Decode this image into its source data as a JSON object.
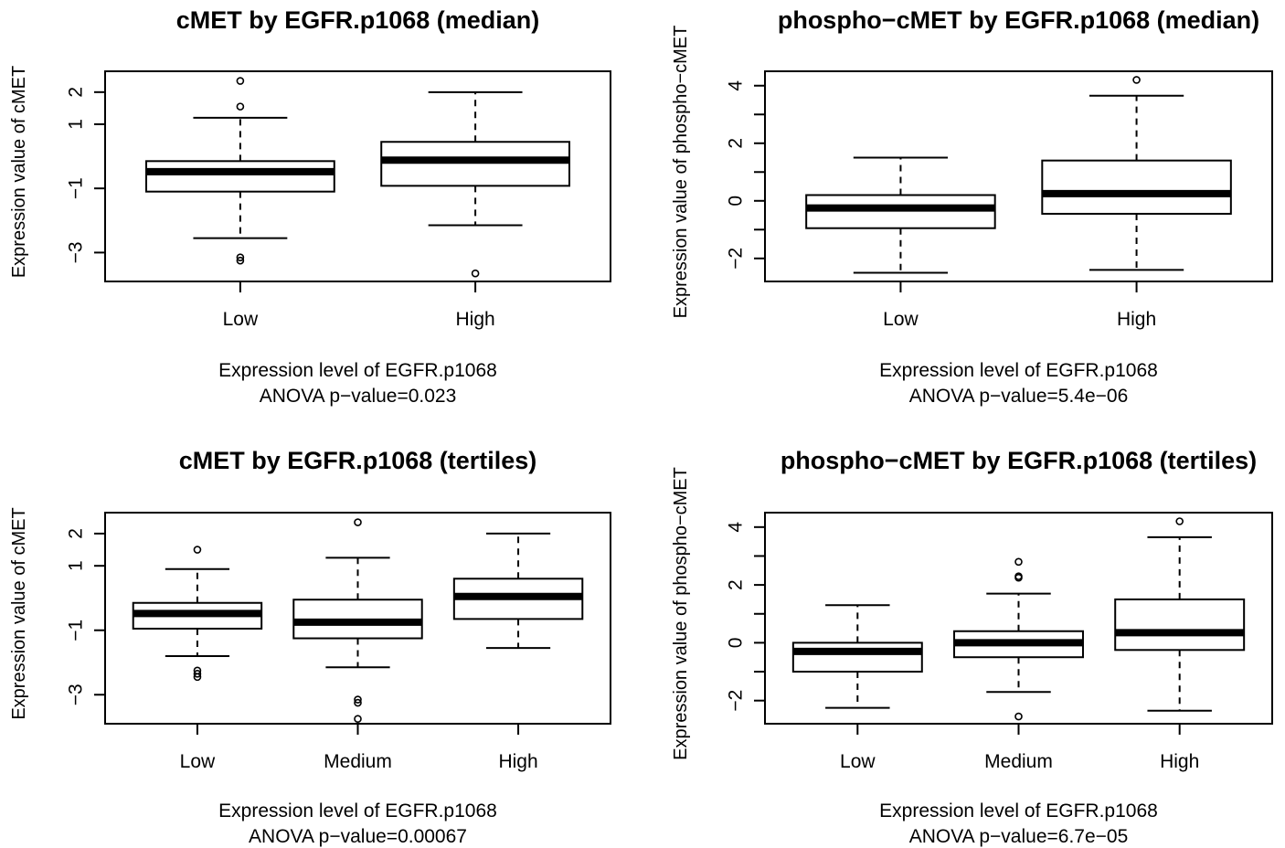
{
  "chart_data": [
    {
      "type": "boxplot",
      "title": "cMET by EGFR.p1068 (median)",
      "xlabel": "Expression level of EGFR.p1068",
      "ylabel": "Expression value of cMET",
      "annotation": "ANOVA p−value=0.023",
      "ylim": [
        -3.9,
        2.65
      ],
      "yticks": [
        -3,
        -1,
        1,
        2
      ],
      "ytick_labels": [
        "−3",
        "−1",
        "1",
        "2"
      ],
      "ygrid": false,
      "categories": [
        "Low",
        "High"
      ],
      "boxes": [
        {
          "category": "Low",
          "whisker_low": -2.55,
          "q1": -1.1,
          "median": -0.48,
          "q3": -0.15,
          "whisker_high": 1.2,
          "outliers": [
            2.35,
            1.55,
            -3.15,
            -3.25
          ]
        },
        {
          "category": "High",
          "whisker_low": -2.15,
          "q1": -0.92,
          "median": -0.12,
          "q3": 0.45,
          "whisker_high": 2.0,
          "outliers": [
            -3.65
          ]
        }
      ]
    },
    {
      "type": "boxplot",
      "title": "phospho−cMET by EGFR.p1068 (median)",
      "xlabel": "Expression level of EGFR.p1068",
      "ylabel": "Expression value of phospho−cMET",
      "annotation": "ANOVA p−value=5.4e−06",
      "ylim": [
        -2.8,
        4.5
      ],
      "yticks": [
        -2,
        0,
        2,
        4
      ],
      "ytick_labels": [
        "−2",
        "0",
        "2",
        "4"
      ],
      "yminor_ticks": [
        -1,
        1,
        3
      ],
      "ygrid": false,
      "categories": [
        "Low",
        "High"
      ],
      "boxes": [
        {
          "category": "Low",
          "whisker_low": -2.5,
          "q1": -0.95,
          "median": -0.25,
          "q3": 0.2,
          "whisker_high": 1.5,
          "outliers": []
        },
        {
          "category": "High",
          "whisker_low": -2.4,
          "q1": -0.45,
          "median": 0.25,
          "q3": 1.4,
          "whisker_high": 3.65,
          "outliers": [
            4.2
          ]
        }
      ]
    },
    {
      "type": "boxplot",
      "title": "cMET by EGFR.p1068 (tertiles)",
      "xlabel": "Expression level of EGFR.p1068",
      "ylabel": "Expression value of cMET",
      "annotation": "ANOVA p−value=0.00067",
      "ylim": [
        -3.9,
        2.65
      ],
      "yticks": [
        -3,
        -1,
        1,
        2
      ],
      "ytick_labels": [
        "−3",
        "−1",
        "1",
        "2"
      ],
      "ygrid": false,
      "categories": [
        "Low",
        "Medium",
        "High"
      ],
      "boxes": [
        {
          "category": "Low",
          "whisker_low": -1.8,
          "q1": -0.95,
          "median": -0.48,
          "q3": -0.15,
          "whisker_high": 0.9,
          "outliers": [
            1.5,
            -2.25,
            -2.35,
            -2.45
          ]
        },
        {
          "category": "Medium",
          "whisker_low": -2.15,
          "q1": -1.25,
          "median": -0.75,
          "q3": -0.05,
          "whisker_high": 1.25,
          "outliers": [
            2.35,
            -3.15,
            -3.25,
            -3.75
          ]
        },
        {
          "category": "High",
          "whisker_low": -1.55,
          "q1": -0.65,
          "median": 0.05,
          "q3": 0.6,
          "whisker_high": 2.0,
          "outliers": []
        }
      ]
    },
    {
      "type": "boxplot",
      "title": "phospho−cMET by EGFR.p1068 (tertiles)",
      "xlabel": "Expression level of EGFR.p1068",
      "ylabel": "Expression value of phospho−cMET",
      "annotation": "ANOVA p−value=6.7e−05",
      "ylim": [
        -2.8,
        4.5
      ],
      "yticks": [
        -2,
        0,
        2,
        4
      ],
      "ytick_labels": [
        "−2",
        "0",
        "2",
        "4"
      ],
      "yminor_ticks": [
        -1,
        1,
        3
      ],
      "ygrid": false,
      "categories": [
        "Low",
        "Medium",
        "High"
      ],
      "boxes": [
        {
          "category": "Low",
          "whisker_low": -2.25,
          "q1": -1.0,
          "median": -0.3,
          "q3": 0.0,
          "whisker_high": 1.3,
          "outliers": []
        },
        {
          "category": "Medium",
          "whisker_low": -1.7,
          "q1": -0.5,
          "median": 0.0,
          "q3": 0.4,
          "whisker_high": 1.7,
          "outliers": [
            2.8,
            2.3,
            2.25,
            -2.55
          ]
        },
        {
          "category": "High",
          "whisker_low": -2.35,
          "q1": -0.25,
          "median": 0.35,
          "q3": 1.5,
          "whisker_high": 3.65,
          "outliers": [
            4.2
          ]
        }
      ]
    }
  ]
}
